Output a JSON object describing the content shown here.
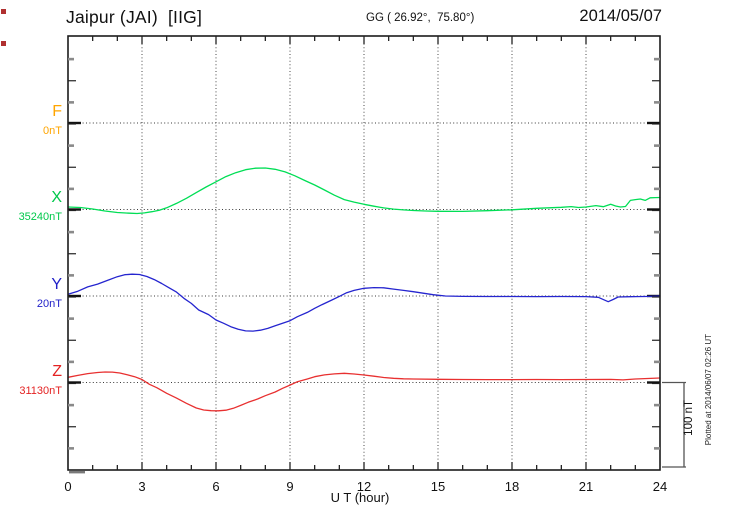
{
  "header": {
    "title": "Jaipur (JAI)  [IIG]",
    "coordinates": "GG ( 26.92°,  75.80°)",
    "date": "2014/05/07"
  },
  "axis": {
    "xlabel": "U T (hour)"
  },
  "scale_bar_label": "100 nT",
  "plotted_note": "Plotted at 2014/06/07 02:26 UT",
  "chart_data": {
    "type": "line",
    "title": "Jaipur (JAI) [IIG] magnetogram 2014/05/07",
    "xlabel": "U T (hour)",
    "xlim": [
      0,
      24
    ],
    "x_ticks": [
      0,
      3,
      6,
      9,
      12,
      15,
      18,
      21,
      24
    ],
    "x_minor_tick_interval_hours": 1,
    "y_tick_interval_nT": 25,
    "scale_bar_nT": 100,
    "grid": "dotted vertical lines every 3 h; dotted horizontal baseline for each component",
    "legend_position": "left margin component labels",
    "series": [
      {
        "name": "F",
        "baseline_label": "0nT",
        "color": "#FFA500",
        "unit": "nT",
        "points": []
      },
      {
        "name": "X",
        "baseline_label": "35240nT",
        "color": "#00DE55",
        "unit": "nT",
        "points": [
          [
            0,
            2.9
          ],
          [
            0.5,
            2.3
          ],
          [
            1,
            0.6
          ],
          [
            1.5,
            -1.7
          ],
          [
            2,
            -3.5
          ],
          [
            2.5,
            -4.3
          ],
          [
            2.8,
            -4.6
          ],
          [
            3.1,
            -3.9
          ],
          [
            3.4,
            -2.5
          ],
          [
            3.7,
            -0.8
          ],
          [
            4,
            2
          ],
          [
            4.4,
            7
          ],
          [
            4.8,
            13
          ],
          [
            5.2,
            19.5
          ],
          [
            5.6,
            26
          ],
          [
            6,
            32
          ],
          [
            6.4,
            38
          ],
          [
            6.8,
            42.5
          ],
          [
            7.2,
            46
          ],
          [
            7.6,
            47.8
          ],
          [
            8,
            48
          ],
          [
            8.4,
            46.5
          ],
          [
            8.8,
            43.5
          ],
          [
            9.2,
            39
          ],
          [
            9.6,
            33.5
          ],
          [
            10,
            28.3
          ],
          [
            10.4,
            22.5
          ],
          [
            10.8,
            16.5
          ],
          [
            11.2,
            11.5
          ],
          [
            11.6,
            8.5
          ],
          [
            12,
            6
          ],
          [
            12.4,
            3.8
          ],
          [
            12.8,
            1.9
          ],
          [
            13.2,
            0.5
          ],
          [
            13.6,
            -0.5
          ],
          [
            14,
            -1.2
          ],
          [
            14.5,
            -1.7
          ],
          [
            15,
            -2.1
          ],
          [
            16,
            -2.2
          ],
          [
            17,
            -1.4
          ],
          [
            18,
            -0.3
          ],
          [
            19,
            1.4
          ],
          [
            19.5,
            2
          ],
          [
            20,
            2.5
          ],
          [
            20.4,
            3.4
          ],
          [
            20.7,
            2.3
          ],
          [
            21,
            2.9
          ],
          [
            21.4,
            4.5
          ],
          [
            21.7,
            3.2
          ],
          [
            22,
            6
          ],
          [
            22.2,
            4
          ],
          [
            22.4,
            2.9
          ],
          [
            22.6,
            3.5
          ],
          [
            22.8,
            10.5
          ],
          [
            23,
            11.5
          ],
          [
            23.2,
            12.1
          ],
          [
            23.4,
            10.5
          ],
          [
            23.6,
            13.5
          ],
          [
            23.8,
            13.7
          ],
          [
            24,
            13.9
          ]
        ]
      },
      {
        "name": "Y",
        "baseline_label": "20nT",
        "color": "#2525CF",
        "unit": "nT",
        "points": [
          [
            0,
            2
          ],
          [
            0.4,
            5.5
          ],
          [
            0.8,
            10.5
          ],
          [
            1.2,
            13.8
          ],
          [
            1.6,
            18
          ],
          [
            2,
            22.3
          ],
          [
            2.3,
            24.6
          ],
          [
            2.6,
            25.2
          ],
          [
            2.9,
            24.8
          ],
          [
            3.2,
            22.5
          ],
          [
            3.5,
            19
          ],
          [
            3.8,
            14.5
          ],
          [
            4.1,
            9.5
          ],
          [
            4.4,
            4.5
          ],
          [
            4.7,
            -2.7
          ],
          [
            5,
            -8.5
          ],
          [
            5.3,
            -16.2
          ],
          [
            5.7,
            -21.5
          ],
          [
            6,
            -27.7
          ],
          [
            6.3,
            -31.5
          ],
          [
            6.6,
            -35.5
          ],
          [
            6.9,
            -38.5
          ],
          [
            7.2,
            -40.3
          ],
          [
            7.5,
            -40.6
          ],
          [
            7.8,
            -39.5
          ],
          [
            8.1,
            -37.5
          ],
          [
            8.4,
            -34.5
          ],
          [
            8.7,
            -31.6
          ],
          [
            9,
            -28.5
          ],
          [
            9.3,
            -23.9
          ],
          [
            9.7,
            -19
          ],
          [
            10,
            -14.2
          ],
          [
            10.3,
            -10
          ],
          [
            10.7,
            -4.6
          ],
          [
            11,
            -0.5
          ],
          [
            11.3,
            3.8
          ],
          [
            11.6,
            6.5
          ],
          [
            12,
            8.9
          ],
          [
            12.4,
            9.7
          ],
          [
            12.8,
            9.5
          ],
          [
            13.2,
            8
          ],
          [
            13.6,
            6.5
          ],
          [
            14,
            5
          ],
          [
            14.4,
            3.2
          ],
          [
            14.8,
            1.5
          ],
          [
            15.3,
            0
          ],
          [
            16,
            -0.5
          ],
          [
            17,
            -0.6
          ],
          [
            18,
            -0.6
          ],
          [
            19,
            -0.7
          ],
          [
            20,
            -0.6
          ],
          [
            21,
            -0.7
          ],
          [
            21.5,
            -1.5
          ],
          [
            21.9,
            -6.6
          ],
          [
            22.1,
            -4
          ],
          [
            22.3,
            -1.2
          ],
          [
            22.8,
            -0.8
          ],
          [
            23.4,
            -0.6
          ],
          [
            24,
            0
          ]
        ]
      },
      {
        "name": "Z",
        "baseline_label": "31130nT",
        "color": "#E83030",
        "unit": "nT",
        "points": [
          [
            0,
            6
          ],
          [
            0.4,
            8.2
          ],
          [
            0.8,
            10.3
          ],
          [
            1.2,
            11.6
          ],
          [
            1.5,
            12.1
          ],
          [
            1.8,
            12
          ],
          [
            2.1,
            11
          ],
          [
            2.4,
            9
          ],
          [
            2.7,
            6.7
          ],
          [
            3,
            3.5
          ],
          [
            3.3,
            -2.1
          ],
          [
            3.6,
            -6
          ],
          [
            4,
            -12.5
          ],
          [
            4.4,
            -18
          ],
          [
            4.8,
            -24
          ],
          [
            5.2,
            -29.5
          ],
          [
            5.5,
            -31.8
          ],
          [
            5.8,
            -32.6
          ],
          [
            6.1,
            -32.7
          ],
          [
            6.4,
            -32
          ],
          [
            6.7,
            -29.8
          ],
          [
            7,
            -26.5
          ],
          [
            7.3,
            -22.9
          ],
          [
            7.7,
            -19
          ],
          [
            8,
            -15.3
          ],
          [
            8.4,
            -11
          ],
          [
            8.7,
            -6.7
          ],
          [
            9,
            -3
          ],
          [
            9.3,
            0.9
          ],
          [
            9.7,
            4
          ],
          [
            10,
            6.7
          ],
          [
            10.4,
            8.8
          ],
          [
            10.8,
            10
          ],
          [
            11.2,
            10.6
          ],
          [
            11.6,
            9.8
          ],
          [
            12,
            8.7
          ],
          [
            12.4,
            7.3
          ],
          [
            12.8,
            5.8
          ],
          [
            13.2,
            4.8
          ],
          [
            13.6,
            4.3
          ],
          [
            14,
            4
          ],
          [
            15,
            3.7
          ],
          [
            16,
            3.5
          ],
          [
            17,
            3.4
          ],
          [
            18,
            3.4
          ],
          [
            19,
            3.5
          ],
          [
            20,
            3.4
          ],
          [
            21,
            3.5
          ],
          [
            22,
            3.6
          ],
          [
            22.5,
            3
          ],
          [
            23,
            4
          ],
          [
            23.5,
            4.6
          ],
          [
            24,
            5.2
          ]
        ]
      }
    ]
  }
}
